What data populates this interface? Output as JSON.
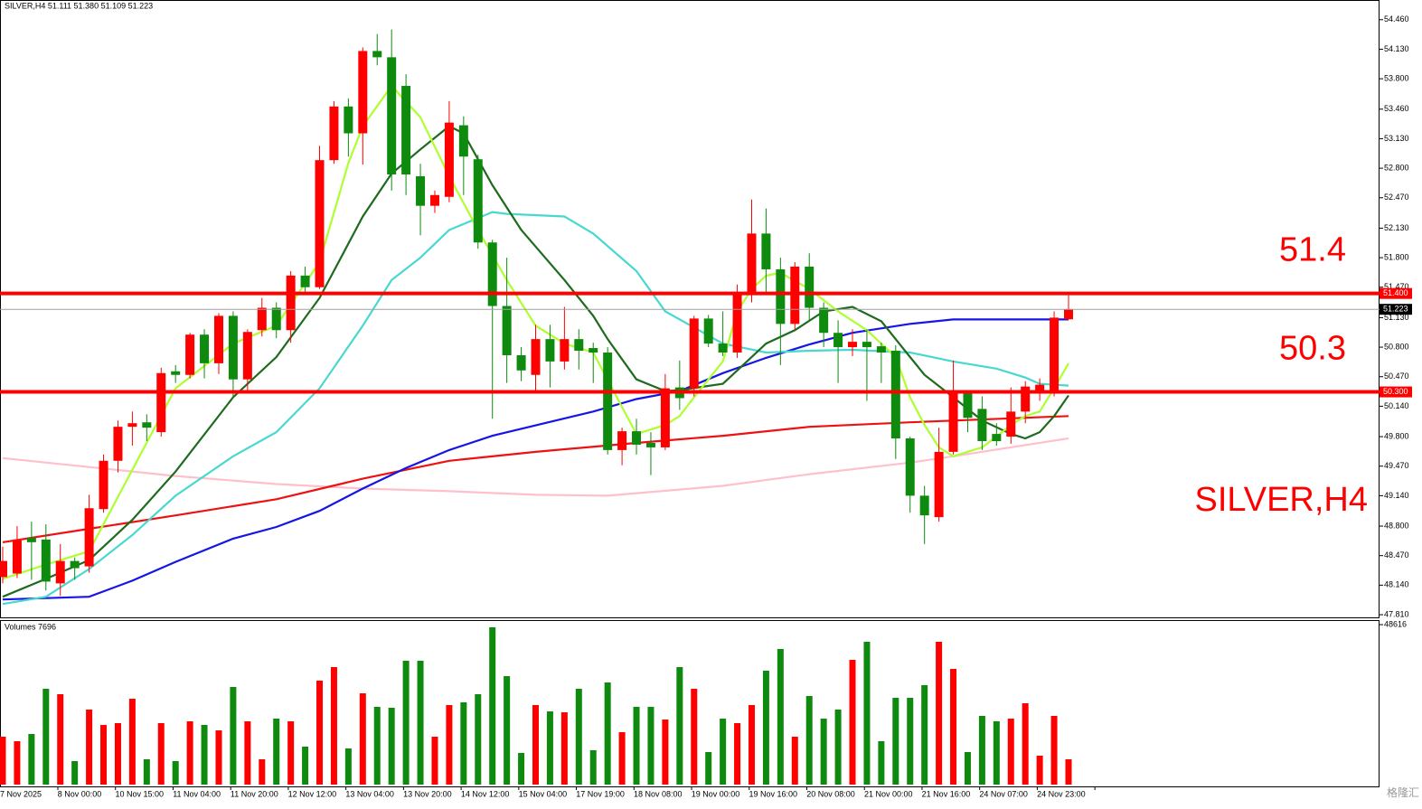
{
  "chart_data": [
    {
      "type": "candlestick",
      "header": "SILVER,H4  51.111 51.380 51.109 51.223",
      "label": "SILVER,H4",
      "watermark": "格隆汇",
      "categories": [
        "7 Nov 2025",
        null,
        null,
        null,
        "8 Nov 00:00",
        null,
        null,
        null,
        "10 Nov 15:00",
        null,
        null,
        null,
        "11 Nov 04:00",
        null,
        null,
        null,
        "11 Nov 20:00",
        null,
        null,
        null,
        "12 Nov 12:00",
        null,
        null,
        null,
        "13 Nov 04:00",
        null,
        null,
        null,
        "13 Nov 20:00",
        null,
        null,
        null,
        "14 Nov 12:00",
        null,
        null,
        null,
        "15 Nov 04:00",
        null,
        null,
        null,
        "17 Nov 19:00",
        null,
        null,
        null,
        "18 Nov 08:00",
        null,
        null,
        null,
        "19 Nov 00:00",
        null,
        null,
        null,
        "19 Nov 16:00",
        null,
        null,
        null,
        "20 Nov 08:00",
        null,
        null,
        null,
        "21 Nov 00:00",
        null,
        null,
        null,
        "21 Nov 16:00",
        null,
        null,
        null,
        "24 Nov 07:00",
        null,
        null,
        null,
        "24 Nov 23:00",
        null,
        null
      ],
      "open": [
        48.23,
        48.27,
        48.67,
        48.65,
        48.16,
        48.41,
        48.35,
        48.99,
        49.53,
        49.91,
        49.96,
        49.85,
        50.53,
        50.49,
        50.94,
        50.62,
        51.15,
        50.44,
        50.99,
        51.24,
        50.99,
        51.6,
        51.47,
        52.89,
        53.49,
        53.19,
        54.11,
        54.04,
        53.72,
        52.71,
        52.38,
        52.48,
        53.28,
        52.9,
        51.97,
        51.26,
        50.71,
        50.49,
        50.89,
        50.64,
        50.89,
        50.79,
        50.74,
        49.65,
        49.86,
        49.73,
        49.68,
        50.35,
        50.34,
        51.12,
        50.84,
        50.74,
        51.4,
        52.07,
        51.67,
        51.06,
        51.7,
        51.24,
        50.96,
        50.8,
        50.86,
        50.81,
        50.76,
        49.78,
        49.14,
        48.9,
        49.63,
        50.31,
        50.11,
        49.83,
        49.8,
        50.08,
        50.3,
        50.28,
        51.111
      ],
      "high": [
        48.57,
        48.8,
        48.85,
        48.82,
        48.6,
        48.45,
        49.15,
        49.6,
        49.98,
        50.08,
        50.05,
        50.57,
        50.6,
        50.96,
        51.0,
        51.18,
        51.2,
        51.0,
        51.35,
        51.3,
        51.65,
        51.7,
        53.05,
        53.55,
        53.58,
        54.15,
        54.3,
        54.35,
        53.85,
        52.85,
        52.55,
        53.55,
        53.38,
        52.95,
        52.0,
        51.8,
        50.8,
        51.05,
        51.05,
        51.25,
        51.0,
        50.85,
        50.8,
        49.9,
        50.0,
        49.85,
        50.5,
        50.65,
        51.15,
        51.16,
        51.2,
        51.5,
        52.45,
        52.35,
        51.8,
        51.75,
        51.85,
        51.3,
        51.1,
        51.0,
        51.0,
        50.85,
        50.82,
        49.8,
        49.25,
        49.9,
        50.65,
        50.32,
        50.25,
        49.95,
        50.35,
        50.42,
        50.45,
        51.2,
        51.38
      ],
      "low": [
        48.16,
        48.22,
        48.2,
        48.08,
        48.02,
        48.2,
        48.28,
        48.95,
        49.4,
        49.7,
        49.75,
        49.8,
        50.4,
        50.45,
        50.45,
        50.5,
        50.24,
        50.28,
        50.92,
        50.9,
        50.85,
        51.4,
        51.45,
        52.85,
        52.93,
        52.84,
        53.95,
        52.55,
        52.5,
        52.05,
        52.3,
        52.42,
        52.5,
        51.9,
        50.0,
        50.4,
        50.42,
        50.3,
        50.35,
        50.55,
        50.55,
        50.4,
        49.6,
        49.48,
        49.6,
        49.37,
        49.65,
        50.1,
        50.25,
        50.8,
        50.7,
        50.68,
        51.3,
        51.4,
        50.6,
        51.0,
        51.1,
        50.8,
        50.4,
        50.7,
        50.2,
        50.4,
        49.55,
        48.95,
        48.6,
        48.85,
        49.6,
        49.85,
        49.65,
        49.7,
        49.72,
        49.95,
        50.2,
        50.25,
        51.109
      ],
      "close": [
        48.41,
        48.64,
        48.62,
        48.18,
        48.41,
        48.33,
        49.0,
        49.53,
        49.91,
        49.95,
        49.9,
        50.51,
        50.49,
        50.94,
        50.62,
        51.15,
        50.44,
        50.97,
        51.24,
        50.99,
        51.6,
        51.47,
        52.89,
        53.49,
        53.19,
        54.11,
        54.04,
        52.73,
        52.73,
        52.38,
        52.5,
        53.31,
        52.93,
        51.97,
        51.26,
        50.71,
        50.54,
        50.89,
        50.64,
        50.89,
        50.76,
        50.74,
        49.65,
        49.86,
        49.71,
        49.68,
        50.34,
        50.23,
        51.12,
        50.84,
        50.74,
        51.4,
        52.07,
        51.67,
        51.06,
        51.7,
        51.24,
        50.96,
        50.8,
        50.86,
        50.8,
        50.74,
        49.78,
        49.14,
        48.92,
        49.63,
        50.31,
        50.01,
        49.75,
        49.75,
        50.08,
        50.36,
        50.38,
        51.13,
        51.223
      ],
      "up_color": "#ff0000",
      "down_color": "#0e8a0e",
      "ylim": [
        47.78,
        54.68
      ],
      "yticks": [
        {
          "value": 54.46,
          "label": "54.460"
        },
        {
          "value": 54.13,
          "label": "54.130"
        },
        {
          "value": 53.8,
          "label": "53.800"
        },
        {
          "value": 53.46,
          "label": "53.460"
        },
        {
          "value": 53.13,
          "label": "53.130"
        },
        {
          "value": 52.8,
          "label": "52.800"
        },
        {
          "value": 52.47,
          "label": "52.470"
        },
        {
          "value": 52.13,
          "label": "52.130"
        },
        {
          "value": 51.8,
          "label": "51.800"
        },
        {
          "value": 51.47,
          "label": "51.470"
        },
        {
          "value": 51.13,
          "label": "51.130"
        },
        {
          "value": 50.8,
          "label": "50.800"
        },
        {
          "value": 50.47,
          "label": "50.470"
        },
        {
          "value": 50.14,
          "label": "50.140"
        },
        {
          "value": 49.8,
          "label": "49.800"
        },
        {
          "value": 49.47,
          "label": "49.470"
        },
        {
          "value": 49.14,
          "label": "49.140"
        },
        {
          "value": 48.8,
          "label": "48.800"
        },
        {
          "value": 48.47,
          "label": "48.470"
        },
        {
          "value": 48.14,
          "label": "48.140"
        },
        {
          "value": 47.81,
          "label": "47.810"
        }
      ],
      "levels": [
        {
          "value": 51.4,
          "label": "51.400"
        },
        {
          "value": 50.3,
          "label": "50.300"
        }
      ],
      "level_color": "#ff0000",
      "last_price": 51.223,
      "lines": [
        {
          "color": "#ffc0cb",
          "x": [
            0,
            6,
            12,
            19,
            25,
            31,
            37,
            42,
            50,
            56,
            63,
            66,
            74
          ],
          "values": [
            49.56,
            49.46,
            49.36,
            49.27,
            49.22,
            49.19,
            49.15,
            49.14,
            49.25,
            49.38,
            49.51,
            49.58,
            49.78
          ]
        },
        {
          "color": "#ee1111",
          "x": [
            0,
            6,
            12,
            19,
            25,
            31,
            37,
            44,
            50,
            56,
            63,
            74
          ],
          "values": [
            48.62,
            48.77,
            48.92,
            49.1,
            49.33,
            49.53,
            49.63,
            49.73,
            49.81,
            49.91,
            49.96,
            50.03
          ]
        },
        {
          "color": "#1515e6",
          "x": [
            0,
            6,
            9,
            12,
            16,
            19,
            22,
            25,
            28,
            31,
            34,
            41,
            44,
            47,
            50,
            53,
            56,
            59,
            63,
            66,
            74
          ],
          "values": [
            47.98,
            48.01,
            48.19,
            48.4,
            48.66,
            48.79,
            48.97,
            49.22,
            49.45,
            49.65,
            49.81,
            50.08,
            50.22,
            50.31,
            50.51,
            50.68,
            50.83,
            50.96,
            51.06,
            51.11,
            51.11
          ]
        },
        {
          "color": "#48d8d0",
          "x": [
            0,
            3,
            6,
            9,
            12,
            16,
            19,
            22,
            25,
            27,
            29,
            31,
            34,
            35,
            39,
            41,
            44,
            46,
            50,
            53,
            56,
            59,
            63,
            66,
            69,
            71,
            72,
            74
          ],
          "values": [
            47.93,
            48.01,
            48.32,
            48.7,
            49.14,
            49.58,
            49.85,
            50.34,
            51.04,
            51.55,
            51.8,
            52.11,
            52.31,
            52.29,
            52.26,
            52.07,
            51.65,
            51.2,
            50.84,
            50.74,
            50.76,
            50.77,
            50.74,
            50.64,
            50.56,
            50.46,
            50.39,
            50.37
          ]
        },
        {
          "color": "#1e6b1e",
          "x": [
            0,
            3,
            6,
            9,
            12,
            16,
            19,
            22,
            25,
            27,
            29,
            31,
            32,
            34,
            36,
            39,
            41,
            42,
            44,
            46,
            47,
            50,
            51,
            53,
            55,
            57,
            59,
            61,
            63,
            64,
            66,
            68,
            70,
            71,
            72,
            73,
            74
          ],
          "values": [
            48.01,
            48.21,
            48.42,
            48.87,
            49.41,
            50.24,
            50.69,
            51.35,
            52.26,
            52.74,
            53.01,
            53.27,
            53.19,
            52.61,
            52.11,
            51.55,
            51.15,
            50.89,
            50.44,
            50.31,
            50.32,
            50.39,
            50.54,
            50.84,
            50.99,
            51.2,
            51.25,
            51.09,
            50.69,
            50.49,
            50.24,
            49.98,
            49.83,
            49.78,
            49.85,
            50.03,
            50.26
          ]
        },
        {
          "color": "#adff2f",
          "x": [
            0,
            3,
            6,
            9,
            12,
            16,
            19,
            22,
            24,
            25,
            27,
            29,
            31,
            33,
            35,
            37,
            39,
            41,
            43,
            44,
            46,
            47,
            48,
            50,
            51,
            52,
            53,
            54,
            56,
            58,
            60,
            62,
            63,
            64,
            65,
            66,
            68,
            69,
            70,
            71,
            72,
            73,
            74
          ],
          "values": [
            48.21,
            48.37,
            48.52,
            49.43,
            50.34,
            50.84,
            51.04,
            51.75,
            52.86,
            53.27,
            53.72,
            53.37,
            52.71,
            52.11,
            51.55,
            51.04,
            50.84,
            50.74,
            50.13,
            49.83,
            49.93,
            50.03,
            50.24,
            50.64,
            51.2,
            51.45,
            51.6,
            51.63,
            51.45,
            51.2,
            50.99,
            50.69,
            50.24,
            49.93,
            49.68,
            49.58,
            49.68,
            49.8,
            49.93,
            50.03,
            50.08,
            50.34,
            50.62
          ]
        }
      ]
    },
    {
      "type": "bar",
      "title": "Volumes 7696",
      "values": [
        14559,
        13186,
        15383,
        29118,
        27470,
        7142,
        22800,
        18130,
        18680,
        26097,
        7692,
        18680,
        7142,
        19229,
        18130,
        16482,
        29668,
        19229,
        7692,
        20053,
        19229,
        11537,
        31591,
        35711,
        10988,
        27745,
        23624,
        23350,
        37634,
        37634,
        14559,
        24174,
        24998,
        27470,
        47798,
        32964,
        9615,
        24174,
        22251,
        21976,
        29118,
        10439,
        31041,
        15933,
        23624,
        23624,
        19778,
        35711,
        29118,
        9889,
        20053,
        18680,
        24174,
        34612,
        41205,
        14559,
        26921,
        20053,
        22800,
        37909,
        43403,
        13186,
        26371,
        26371,
        30217,
        43403,
        35162,
        9889,
        20877,
        19229,
        20053,
        24723,
        8790,
        20877,
        7696
      ],
      "ylim": [
        0,
        50000
      ],
      "yticks": [
        48616
      ]
    }
  ]
}
